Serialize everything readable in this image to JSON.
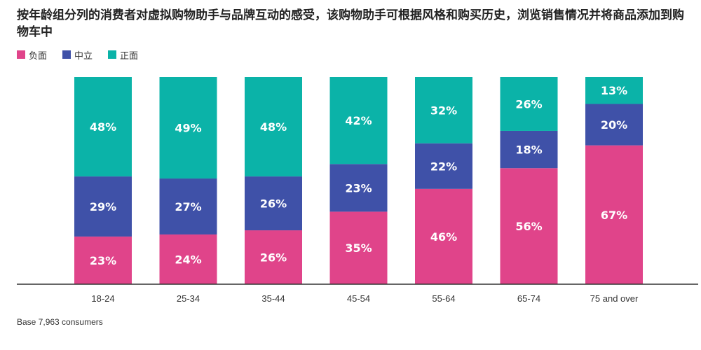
{
  "title": "按年龄组分列的消费者对虚拟购物助手与品牌互动的感受，该购物助手可根据风格和购买历史，浏览销售情况并将商品添加到购物车中",
  "footnote": "Base 7,963 consumers",
  "chart_data": {
    "type": "bar",
    "stacked": true,
    "categories": [
      "18-24",
      "25-34",
      "35-44",
      "45-54",
      "55-64",
      "65-74",
      "75 and over"
    ],
    "series": [
      {
        "name": "负面",
        "color": "#E0448A",
        "values": [
          23,
          24,
          26,
          35,
          46,
          56,
          67
        ]
      },
      {
        "name": "中立",
        "color": "#3F51A8",
        "values": [
          29,
          27,
          26,
          23,
          22,
          18,
          20
        ]
      },
      {
        "name": "正面",
        "color": "#0BB3A8",
        "values": [
          48,
          49,
          48,
          42,
          32,
          26,
          13
        ]
      }
    ],
    "value_suffix": "%",
    "ylim": [
      0,
      100
    ],
    "legend_position": "top-left",
    "grid": false
  }
}
